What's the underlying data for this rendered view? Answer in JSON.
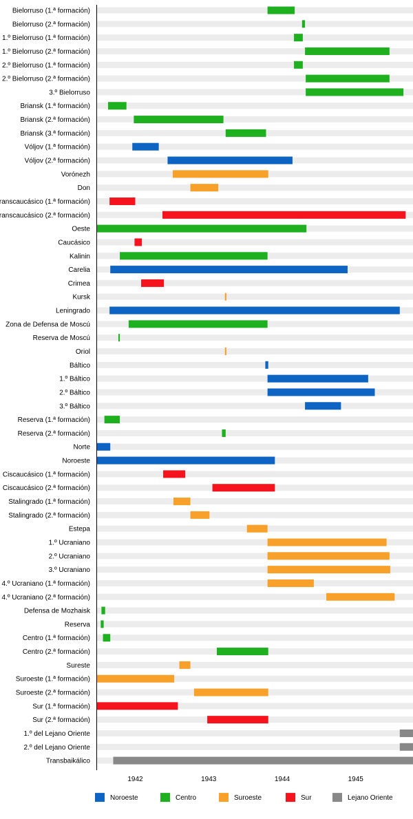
{
  "chart_data": {
    "type": "gantt",
    "title": "",
    "xlabel": "",
    "ylabel": "",
    "x_range": [
      1941.48,
      1945.78
    ],
    "x_ticks": [
      1942,
      1943,
      1944,
      1945
    ],
    "colors": {
      "Noroeste": "#0d64c2",
      "Centro": "#1fb01f",
      "Suroeste": "#f7a02a",
      "Sur": "#f5131d",
      "Lejano Oriente": "#888888",
      "track": "#ececec"
    },
    "legend": [
      "Noroeste",
      "Centro",
      "Suroeste",
      "Sur",
      "Lejano Oriente"
    ],
    "legend_position": "bottom",
    "rows": [
      {
        "label": "Bielorruso (1.ª formación)",
        "start": 1943.8,
        "end": 1944.17,
        "group": "Centro"
      },
      {
        "label": "Bielorruso (2.ª formación)",
        "start": 1944.27,
        "end": 1944.31,
        "group": "Centro"
      },
      {
        "label": "1.º Bielorruso (1.ª formación)",
        "start": 1944.16,
        "end": 1944.28,
        "group": "Centro"
      },
      {
        "label": "1.º Bielorruso (2.ª formación)",
        "start": 1944.31,
        "end": 1945.46,
        "group": "Centro"
      },
      {
        "label": "2.º Bielorruso (1.ª formación)",
        "start": 1944.16,
        "end": 1944.28,
        "group": "Centro"
      },
      {
        "label": "2.º Bielorruso (2.ª formación)",
        "start": 1944.32,
        "end": 1945.46,
        "group": "Centro"
      },
      {
        "label": "3.º Bielorruso",
        "start": 1944.32,
        "end": 1945.65,
        "group": "Centro"
      },
      {
        "label": "Briansk (1.ª formación)",
        "start": 1941.63,
        "end": 1941.88,
        "group": "Centro"
      },
      {
        "label": "Briansk (2.ª formación)",
        "start": 1941.98,
        "end": 1943.2,
        "group": "Centro"
      },
      {
        "label": "Briansk (3.ª formación)",
        "start": 1943.23,
        "end": 1943.78,
        "group": "Centro"
      },
      {
        "label": "Vóljov (1.ª formación)",
        "start": 1941.96,
        "end": 1942.32,
        "group": "Noroeste"
      },
      {
        "label": "Vóljov (2.ª formación)",
        "start": 1942.44,
        "end": 1944.14,
        "group": "Noroeste"
      },
      {
        "label": "Vorónezh",
        "start": 1942.51,
        "end": 1943.81,
        "group": "Suroeste"
      },
      {
        "label": "Don",
        "start": 1942.75,
        "end": 1943.13,
        "group": "Suroeste"
      },
      {
        "label": "Transcaucásico (1.ª formación)",
        "start": 1941.65,
        "end": 1942.0,
        "group": "Sur"
      },
      {
        "label": "Transcaucásico (2.ª formación)",
        "start": 1942.37,
        "end": 1945.68,
        "group": "Sur"
      },
      {
        "label": "Oeste",
        "start": 1941.48,
        "end": 1944.33,
        "group": "Centro"
      },
      {
        "label": "Caucásico",
        "start": 1941.99,
        "end": 1942.09,
        "group": "Sur"
      },
      {
        "label": "Kalinin",
        "start": 1941.79,
        "end": 1943.8,
        "group": "Centro"
      },
      {
        "label": "Carelia",
        "start": 1941.66,
        "end": 1944.89,
        "group": "Noroeste"
      },
      {
        "label": "Crimea",
        "start": 1942.08,
        "end": 1942.39,
        "group": "Sur"
      },
      {
        "label": "Kursk",
        "start": 1943.22,
        "end": 1943.24,
        "group": "Suroeste"
      },
      {
        "label": "Leningrado",
        "start": 1941.65,
        "end": 1945.6,
        "group": "Noroeste"
      },
      {
        "label": "Zona de Defensa de Moscú",
        "start": 1941.91,
        "end": 1943.8,
        "group": "Centro"
      },
      {
        "label": "Reserva de Moscú",
        "start": 1941.77,
        "end": 1941.79,
        "group": "Centro"
      },
      {
        "label": "Oriol",
        "start": 1943.22,
        "end": 1943.24,
        "group": "Suroeste"
      },
      {
        "label": "Báltico",
        "start": 1943.77,
        "end": 1943.81,
        "group": "Noroeste"
      },
      {
        "label": "1.º Báltico",
        "start": 1943.8,
        "end": 1945.17,
        "group": "Noroeste"
      },
      {
        "label": "2.º Báltico",
        "start": 1943.8,
        "end": 1945.26,
        "group": "Noroeste"
      },
      {
        "label": "3.º Báltico",
        "start": 1944.31,
        "end": 1944.8,
        "group": "Noroeste"
      },
      {
        "label": "Reserva (1.ª formación)",
        "start": 1941.58,
        "end": 1941.79,
        "group": "Centro"
      },
      {
        "label": "Reserva (2.ª formación)",
        "start": 1943.18,
        "end": 1943.23,
        "group": "Centro"
      },
      {
        "label": "Norte",
        "start": 1941.48,
        "end": 1941.66,
        "group": "Noroeste"
      },
      {
        "label": "Noroeste",
        "start": 1941.48,
        "end": 1943.9,
        "group": "Noroeste"
      },
      {
        "label": "Ciscaucásico (1.ª formación)",
        "start": 1942.38,
        "end": 1942.68,
        "group": "Sur"
      },
      {
        "label": "Ciscaucásico (2.ª formación)",
        "start": 1943.05,
        "end": 1943.9,
        "group": "Sur"
      },
      {
        "label": "Stalingrado (1.ª formación)",
        "start": 1942.52,
        "end": 1942.75,
        "group": "Suroeste"
      },
      {
        "label": "Stalingrado (2.ª formación)",
        "start": 1942.75,
        "end": 1943.01,
        "group": "Suroeste"
      },
      {
        "label": "Estepa",
        "start": 1943.52,
        "end": 1943.8,
        "group": "Suroeste"
      },
      {
        "label": "1.º Ucraniano",
        "start": 1943.8,
        "end": 1945.42,
        "group": "Suroeste"
      },
      {
        "label": "2.º Ucraniano",
        "start": 1943.8,
        "end": 1945.46,
        "group": "Suroeste"
      },
      {
        "label": "3.º Ucraniano",
        "start": 1943.8,
        "end": 1945.47,
        "group": "Suroeste"
      },
      {
        "label": "4.º Ucraniano (1.ª formación)",
        "start": 1943.8,
        "end": 1944.43,
        "group": "Suroeste"
      },
      {
        "label": "4.º Ucraniano (2.ª formación)",
        "start": 1944.6,
        "end": 1945.53,
        "group": "Suroeste"
      },
      {
        "label": "Defensa de Mozhaisk",
        "start": 1941.54,
        "end": 1941.59,
        "group": "Centro"
      },
      {
        "label": "Reserva",
        "start": 1941.53,
        "end": 1941.57,
        "group": "Centro"
      },
      {
        "label": "Centro (1.ª formación)",
        "start": 1941.56,
        "end": 1941.66,
        "group": "Centro"
      },
      {
        "label": "Centro (2.ª formación)",
        "start": 1943.11,
        "end": 1943.81,
        "group": "Centro"
      },
      {
        "label": "Sureste",
        "start": 1942.6,
        "end": 1942.75,
        "group": "Suroeste"
      },
      {
        "label": "Suroeste (1.ª formación)",
        "start": 1941.48,
        "end": 1942.53,
        "group": "Suroeste"
      },
      {
        "label": "Suroeste (2.ª formación)",
        "start": 1942.8,
        "end": 1943.81,
        "group": "Suroeste"
      },
      {
        "label": "Sur (1.ª formación)",
        "start": 1941.48,
        "end": 1942.58,
        "group": "Sur"
      },
      {
        "label": "Sur (2.ª formación)",
        "start": 1942.98,
        "end": 1943.81,
        "group": "Sur"
      },
      {
        "label": "1.º del Lejano Oriente",
        "start": 1945.6,
        "end": 1945.78,
        "group": "Lejano Oriente"
      },
      {
        "label": "2.º del Lejano Oriente",
        "start": 1945.6,
        "end": 1945.78,
        "group": "Lejano Oriente"
      },
      {
        "label": "Transbaikálico",
        "start": 1941.7,
        "end": 1945.78,
        "group": "Lejano Oriente"
      }
    ]
  }
}
